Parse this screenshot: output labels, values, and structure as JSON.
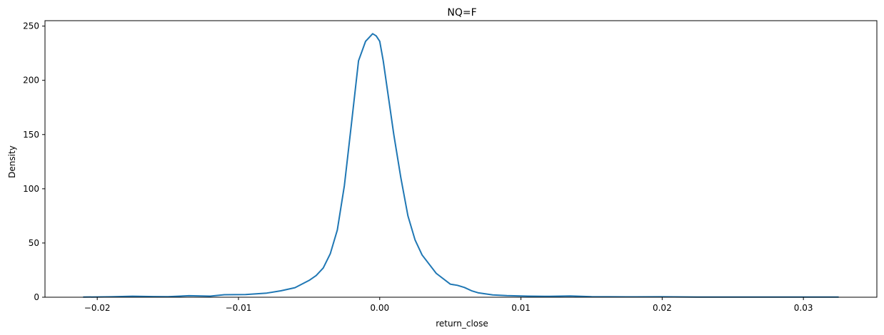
{
  "chart_data": {
    "type": "line",
    "title": "NQ=F",
    "xlabel": "return_close",
    "ylabel": "Density",
    "xlim": [
      -0.0237,
      0.0352
    ],
    "ylim": [
      0,
      255
    ],
    "xticks": [
      {
        "value": -0.02,
        "label": "−0.02"
      },
      {
        "value": -0.01,
        "label": "−0.01"
      },
      {
        "value": 0.0,
        "label": "0.00"
      },
      {
        "value": 0.01,
        "label": "0.01"
      },
      {
        "value": 0.02,
        "label": "0.02"
      },
      {
        "value": 0.03,
        "label": "0.03"
      }
    ],
    "yticks": [
      {
        "value": 0,
        "label": "0"
      },
      {
        "value": 50,
        "label": "50"
      },
      {
        "value": 100,
        "label": "100"
      },
      {
        "value": 150,
        "label": "150"
      },
      {
        "value": 200,
        "label": "200"
      },
      {
        "value": 250,
        "label": "250"
      }
    ],
    "grid": false,
    "color": "#1f77b4",
    "series": [
      {
        "x": [
          -0.021,
          -0.019,
          -0.0175,
          -0.016,
          -0.015,
          -0.0135,
          -0.012,
          -0.011,
          -0.0095,
          -0.008,
          -0.007,
          -0.006,
          -0.005,
          -0.0045,
          -0.004,
          -0.0035,
          -0.003,
          -0.0025,
          -0.002,
          -0.0015,
          -0.001,
          -0.0005,
          -0.00025,
          0.0,
          0.00025,
          0.0005,
          0.001,
          0.0015,
          0.002,
          0.0025,
          0.003,
          0.004,
          0.005,
          0.0055,
          0.006,
          0.0065,
          0.007,
          0.008,
          0.009,
          0.0105,
          0.012,
          0.0135,
          0.015,
          0.0175,
          0.02,
          0.0225,
          0.025,
          0.0275,
          0.03,
          0.0315,
          0.0325
        ],
        "y": [
          0.1,
          0.4,
          0.9,
          0.6,
          0.5,
          1.4,
          1.0,
          2.3,
          2.5,
          3.8,
          5.9,
          8.8,
          15.5,
          20.0,
          27.0,
          40.0,
          62.0,
          103.0,
          160.0,
          218.0,
          236.0,
          243.0,
          241.0,
          236.0,
          218.0,
          195.0,
          150.0,
          110.0,
          75.0,
          53.0,
          39.0,
          22.0,
          12.0,
          11.0,
          9.0,
          6.0,
          4.0,
          2.2,
          1.5,
          1.0,
          0.8,
          1.1,
          0.5,
          0.3,
          0.4,
          0.2,
          0.1,
          0.1,
          0.1,
          0.2,
          0.1
        ]
      }
    ]
  }
}
